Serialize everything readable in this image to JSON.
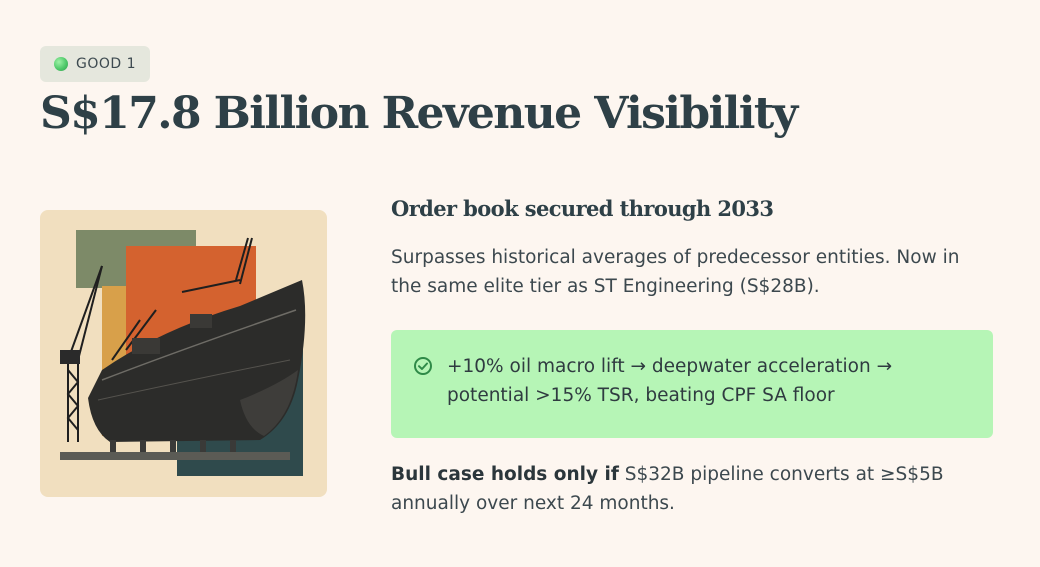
{
  "badge": {
    "label": "GOOD 1"
  },
  "title": "S$17.8 Billion Revenue Visibility",
  "subtitle": "Order book secured through 2033",
  "description": "Surpasses historical averages of predecessor entities. Now in the same elite tier as ST Engineering (S$28B).",
  "callout": {
    "icon": "check-circle-icon",
    "text": "+10% oil macro lift → deepwater acceleration → potential >15% TSR, beating CPF SA floor",
    "background": "#b6f5b6"
  },
  "bull_case": {
    "lead": "Bull case holds only if",
    "text": " S$32B pipeline converts at ≥S$5B annually over next 24 months."
  },
  "image": {
    "subject": "ship-in-drydock-illustration"
  },
  "colors": {
    "background": "#fdf6f0",
    "title": "#2e4047",
    "badge_dot": "#4fc96a",
    "image_card": "#f1dfbf"
  }
}
